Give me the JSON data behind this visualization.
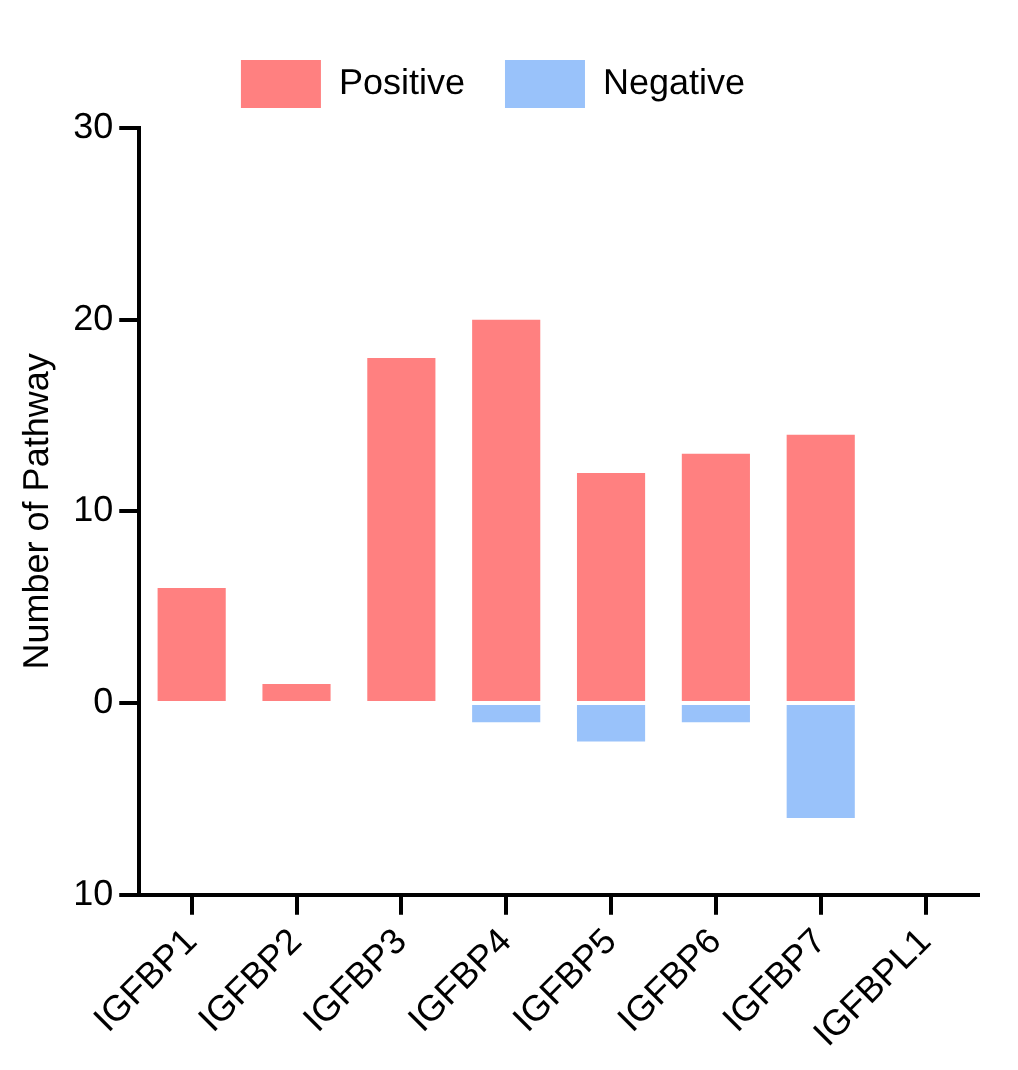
{
  "chart_data": {
    "type": "bar",
    "ylabel": "Number of Pathway",
    "categories": [
      "IGFBP1",
      "IGFBP2",
      "IGFBP3",
      "IGFBP4",
      "IGFBP5",
      "IGFBP6",
      "IGFBP7",
      "IGFBPL1"
    ],
    "series": [
      {
        "name": "Positive",
        "color": "#ff8080",
        "values": [
          6,
          1,
          18,
          20,
          12,
          13,
          14,
          0
        ]
      },
      {
        "name": "Negative",
        "color": "#99c2fa",
        "values": [
          0,
          0,
          0,
          -1,
          -2,
          -1,
          -6,
          0
        ]
      }
    ],
    "stacked": true,
    "ylim": [
      -10,
      30
    ],
    "yticks": [
      {
        "value": -10,
        "label": "10"
      },
      0,
      10,
      20,
      30
    ],
    "grid": false,
    "legend": "top"
  }
}
